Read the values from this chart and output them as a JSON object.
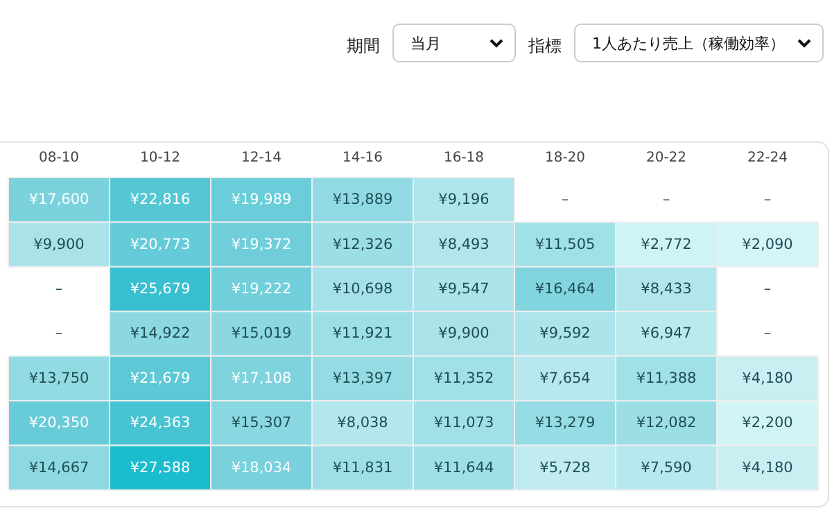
{
  "chart_data": {
    "type": "heatmap",
    "annotations": [
      "期間",
      "当月",
      "指標",
      "1人あたり売上（稼働効率）"
    ],
    "categories": [
      "08-10",
      "10-12",
      "12-14",
      "14-16",
      "16-18",
      "18-20",
      "20-22",
      "22-24"
    ],
    "y_categories": [
      null,
      null,
      null,
      null,
      null,
      null,
      null
    ],
    "cells": [
      [
        17600,
        22816,
        19989,
        13889,
        9196,
        null,
        null,
        null
      ],
      [
        9900,
        20773,
        19372,
        12326,
        8493,
        11505,
        2772,
        2090
      ],
      [
        null,
        25679,
        19222,
        10698,
        9547,
        16464,
        8433,
        null
      ],
      [
        null,
        14922,
        15019,
        11921,
        9900,
        9592,
        6947,
        null
      ],
      [
        13750,
        21679,
        17108,
        13397,
        11352,
        7654,
        11388,
        4180
      ],
      [
        20350,
        24363,
        15307,
        8038,
        11073,
        13279,
        12082,
        2200
      ],
      [
        14667,
        27588,
        18034,
        11831,
        11644,
        5728,
        7590,
        4180
      ]
    ],
    "cell_labels": [
      [
        "¥17,600",
        "¥22,816",
        "¥19,989",
        "¥13,889",
        "¥9,196",
        "–",
        "–",
        "–"
      ],
      [
        "¥9,900",
        "¥20,773",
        "¥19,372",
        "¥12,326",
        "¥8,493",
        "¥11,505",
        "¥2,772",
        "¥2,090"
      ],
      [
        "–",
        "¥25,679",
        "¥19,222",
        "¥10,698",
        "¥9,547",
        "¥16,464",
        "¥8,433",
        "–"
      ],
      [
        "–",
        "¥14,922",
        "¥15,019",
        "¥11,921",
        "¥9,900",
        "¥9,592",
        "¥6,947",
        "–"
      ],
      [
        "¥13,750",
        "¥21,679",
        "¥17,108",
        "¥13,397",
        "¥11,352",
        "¥7,654",
        "¥11,388",
        "¥4,180"
      ],
      [
        "¥20,350",
        "¥24,363",
        "¥15,307",
        "¥8,038",
        "¥11,073",
        "¥13,279",
        "¥12,082",
        "¥2,200"
      ],
      [
        "¥14,667",
        "¥27,588",
        "¥18,034",
        "¥11,831",
        "¥11,644",
        "¥5,728",
        "¥7,590",
        "¥4,180"
      ]
    ]
  }
}
